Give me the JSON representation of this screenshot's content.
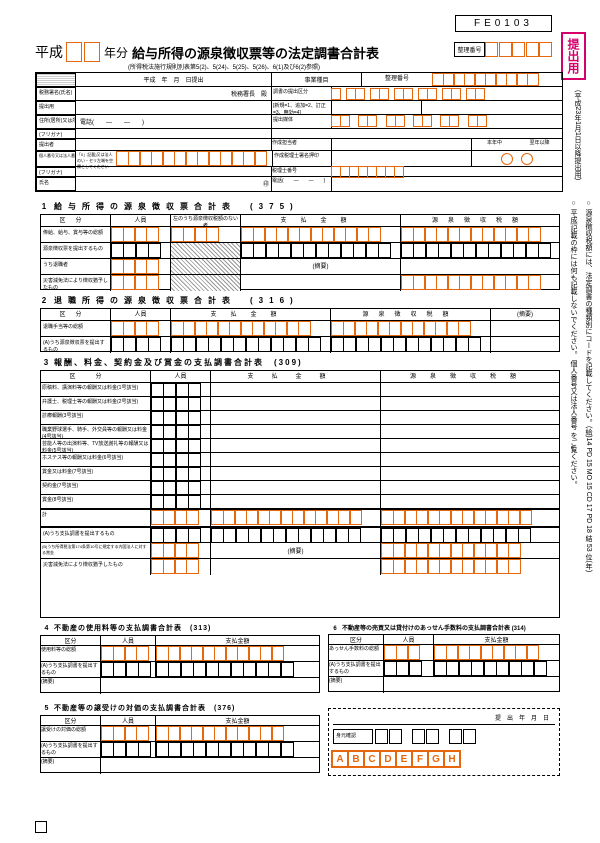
{
  "form_code": "FE0103",
  "era": "平成",
  "year_label": "年分",
  "title": "給与所得の源泉徴収票等の法定調書合計表",
  "subtitle": "(所得税法施行規則別表第5(2)、5(24)、5(25)、5(26)、6(1)及び6(2)参照)",
  "submit_label": "提出用",
  "side_note_1": "(平成23年1月1日以降提出用)",
  "side_note_2": "○ 源泉徴収税額には、法定調書の種類別にコードを記載してください。(給)14 PD 15 MO 15 CD 17 PD 18 結 53 位(年)",
  "side_note_3": "○ 平成|記載の枠には何も記載しないでください。    個人番号又は法人番号 をご覧ください。",
  "header": {
    "date_label": "平成　年　月　日提出",
    "zeimusho": "税務署長　殿",
    "office_zeimu": "事業種目",
    "seirigo": "整理番号",
    "tel": "電話(　　―　　―　　)",
    "choboshu": "調書の提出区分",
    "choboshu_note": "[新規=1、追加=2、訂正=3、無効=4]",
    "teishutsu": "提出媒体",
    "sakusei": "作成担当者",
    "sakusei_zeirishi": "作成税理士署名押印",
    "honnen": "本年中",
    "zeirishi_no": "税理士番号",
    "zeirishi_tel": "電話(　　―　　―　　)",
    "rows": [
      "税務署名(氏名)",
      "提出用",
      "住所(居所)又は所在地",
      "(フリガナ)",
      "提出者",
      "氏名又は名称",
      "個人番号又は法人番号(提出者)",
      "(フリガナ)",
      "氏名"
    ]
  },
  "sec1": {
    "title": "給与所得の源泉徴収票合計表",
    "code": "(375)",
    "cols": [
      "区分",
      "人員",
      "左のうち源泉徴収税額のない者",
      "支払金額",
      "源泉徴収税額"
    ],
    "rows": [
      "俸給、給与、賞与等の総額",
      "源泉徴収票を提出するもの",
      "うち退職者",
      "災害減免法により徴収猶予したもの"
    ],
    "note": "(摘要)"
  },
  "sec2": {
    "title": "退職所得の源泉徴収票合計表",
    "code": "(316)",
    "cols": [
      "区分",
      "人員",
      "支払金額",
      "源泉徴収税額"
    ],
    "rows": [
      "退職手当等の総額",
      "(摘要)"
    ]
  },
  "sec3": {
    "title": "報酬、料金、契約金及び賞金の支払調書合計表",
    "code": "(309)",
    "cols": [
      "区分",
      "人員",
      "支払金額",
      "源泉徴収税額"
    ],
    "rows": [
      "原稿料、講演料等の報酬又は料金(1号該当)",
      "弁護士、税理士等の報酬又は料金(2号該当)",
      "診療報酬(3号該当)",
      "職業野球選手、騎手、外交員等の報酬又は料金(4号該当)",
      "芸能人等の出演料等、TV放送謝礼等の報酬又は料金(5号該当)",
      "ホステス等の報酬又は料金(6号該当)",
      "賞金又は料金(7号該当)",
      "契約金(7号該当)",
      "賞金(8号該当)",
      "計"
    ],
    "extra_rows": [
      "(A)うち支払調書を提出するもの",
      "(B)うち所得税法第174条第10号に規定する内国法人に対する賞金",
      "災害減免法により徴収猶予したもの"
    ],
    "note": "(摘要)"
  },
  "sec4": {
    "title": "不動産の使用料等の支払調書合計表",
    "code": "(313)",
    "cols": [
      "区分",
      "人員",
      "支払金額"
    ],
    "rows": [
      "使用料等の総額",
      "(摘要)"
    ]
  },
  "sec5": {
    "title": "不動産等の譲受けの対価の支払調書合計表",
    "code": "(376)",
    "cols": [
      "区分",
      "人員",
      "支払金額"
    ],
    "rows": [
      "譲受けの対価の総額",
      "(摘要)"
    ]
  },
  "sec6": {
    "title": "不動産等の売買又は貸付けのあっせん手数料の支払調書合計表",
    "code": "(314)",
    "cols": [
      "区分",
      "人員",
      "支払金額"
    ],
    "rows": [
      "あっせん手数料の総額",
      "(摘要)"
    ]
  },
  "footer": {
    "date_label": "提出年月日",
    "body_label": "身元確認",
    "letters": [
      "A",
      "B",
      "C",
      "D",
      "E",
      "F",
      "G",
      "H"
    ]
  }
}
